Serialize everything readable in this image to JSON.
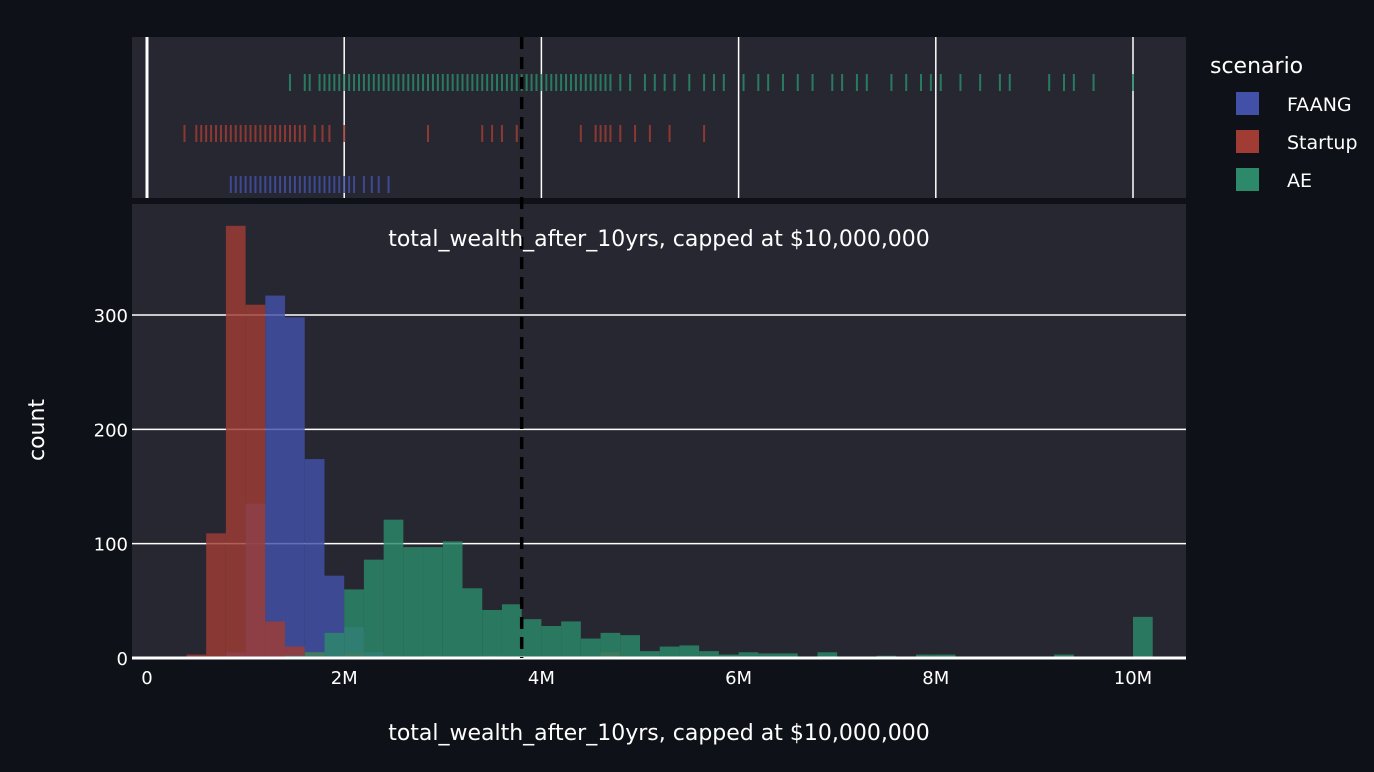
{
  "chart_data": {
    "type": "bar",
    "title": "total_wealth_after_10yrs, capped at $10,000,000",
    "xlabel": "total_wealth_after_10yrs, capped at $10,000,000",
    "ylabel": "count",
    "xlim": [
      0,
      10500000
    ],
    "ylim": [
      0,
      395
    ],
    "x_tick_values": [
      0,
      2000000,
      4000000,
      6000000,
      8000000,
      10000000
    ],
    "x_tick_labels": [
      "0",
      "2M",
      "4M",
      "6M",
      "8M",
      "10M"
    ],
    "y_tick_values": [
      0,
      100,
      200,
      300
    ],
    "y_tick_labels": [
      "0",
      "100",
      "200",
      "300"
    ],
    "bin_width": 200000,
    "reference_line_x": 3800000,
    "legend": {
      "title": "scenario",
      "placement": "right"
    },
    "series": [
      {
        "name": "FAANG",
        "color": "#4350a8",
        "bins": [
          [
            800000,
            5
          ],
          [
            1000000,
            135
          ],
          [
            1200000,
            317
          ],
          [
            1400000,
            298
          ],
          [
            1600000,
            174
          ],
          [
            1800000,
            72
          ],
          [
            2000000,
            27
          ],
          [
            2200000,
            5
          ],
          [
            2400000,
            2
          ]
        ]
      },
      {
        "name": "Startup",
        "color": "#a03c34",
        "bins": [
          [
            400000,
            3
          ],
          [
            600000,
            109
          ],
          [
            800000,
            378
          ],
          [
            1000000,
            309
          ],
          [
            1200000,
            32
          ],
          [
            1400000,
            10
          ],
          [
            1600000,
            5
          ],
          [
            2000000,
            4
          ],
          [
            2800000,
            2
          ],
          [
            3400000,
            2
          ],
          [
            4600000,
            5
          ]
        ]
      },
      {
        "name": "AE",
        "color": "#2c8a6a",
        "bins": [
          [
            1400000,
            2
          ],
          [
            1600000,
            5
          ],
          [
            1800000,
            22
          ],
          [
            2000000,
            60
          ],
          [
            2200000,
            86
          ],
          [
            2400000,
            121
          ],
          [
            2600000,
            97
          ],
          [
            2800000,
            97
          ],
          [
            3000000,
            102
          ],
          [
            3200000,
            61
          ],
          [
            3400000,
            42
          ],
          [
            3600000,
            47
          ],
          [
            3800000,
            34
          ],
          [
            4000000,
            28
          ],
          [
            4200000,
            32
          ],
          [
            4400000,
            17
          ],
          [
            4600000,
            22
          ],
          [
            4800000,
            20
          ],
          [
            5000000,
            6
          ],
          [
            5200000,
            10
          ],
          [
            5400000,
            11
          ],
          [
            5600000,
            6
          ],
          [
            5800000,
            3
          ],
          [
            6000000,
            5
          ],
          [
            6200000,
            4
          ],
          [
            6400000,
            4
          ],
          [
            6600000,
            1
          ],
          [
            6800000,
            5
          ],
          [
            7000000,
            1
          ],
          [
            7200000,
            1
          ],
          [
            7400000,
            2
          ],
          [
            7600000,
            1
          ],
          [
            7800000,
            3
          ],
          [
            8000000,
            3
          ],
          [
            8200000,
            1
          ],
          [
            8400000,
            1
          ],
          [
            8600000,
            1
          ],
          [
            8800000,
            1
          ],
          [
            9000000,
            1
          ],
          [
            9200000,
            3
          ],
          [
            9400000,
            1
          ],
          [
            9800000,
            1
          ],
          [
            10000000,
            36
          ]
        ]
      }
    ],
    "rug": {
      "FAANG": [
        850000,
        900000,
        950000,
        1000000,
        1050000,
        1100000,
        1150000,
        1200000,
        1250000,
        1300000,
        1350000,
        1400000,
        1450000,
        1500000,
        1550000,
        1600000,
        1650000,
        1700000,
        1750000,
        1800000,
        1850000,
        1900000,
        1950000,
        2000000,
        2050000,
        2100000,
        2200000,
        2280000,
        2350000,
        2450000
      ],
      "Startup": [
        380000,
        500000,
        550000,
        600000,
        650000,
        700000,
        750000,
        800000,
        850000,
        900000,
        950000,
        1000000,
        1050000,
        1100000,
        1150000,
        1200000,
        1250000,
        1300000,
        1350000,
        1400000,
        1450000,
        1500000,
        1550000,
        1600000,
        1700000,
        1780000,
        1850000,
        2000000,
        2850000,
        3400000,
        3500000,
        3600000,
        3750000,
        4400000,
        4550000,
        4600000,
        4650000,
        4700000,
        4800000,
        4950000,
        5100000,
        5300000,
        5650000
      ],
      "AE": [
        1450000,
        1600000,
        1650000,
        1750000,
        1800000,
        1850000,
        1900000,
        1950000,
        2000000,
        2050000,
        2100000,
        2150000,
        2200000,
        2250000,
        2300000,
        2350000,
        2400000,
        2450000,
        2500000,
        2550000,
        2600000,
        2650000,
        2700000,
        2750000,
        2800000,
        2850000,
        2900000,
        2950000,
        3000000,
        3050000,
        3100000,
        3150000,
        3200000,
        3250000,
        3300000,
        3350000,
        3400000,
        3450000,
        3500000,
        3550000,
        3600000,
        3650000,
        3700000,
        3750000,
        3800000,
        3850000,
        3900000,
        3950000,
        4000000,
        4050000,
        4100000,
        4150000,
        4200000,
        4250000,
        4300000,
        4350000,
        4400000,
        4450000,
        4500000,
        4550000,
        4600000,
        4650000,
        4700000,
        4800000,
        4900000,
        5050000,
        5150000,
        5250000,
        5350000,
        5500000,
        5650000,
        5750000,
        5850000,
        6050000,
        6200000,
        6300000,
        6450000,
        6600000,
        6750000,
        6950000,
        7050000,
        7200000,
        7300000,
        7550000,
        7700000,
        7850000,
        7950000,
        8050000,
        8250000,
        8450000,
        8650000,
        8750000,
        9150000,
        9300000,
        9400000,
        9600000,
        10000000
      ]
    }
  }
}
